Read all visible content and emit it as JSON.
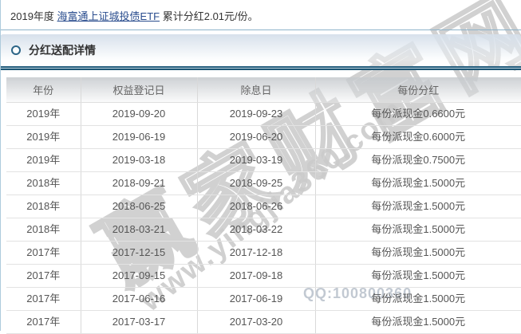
{
  "summary": {
    "prefix": "2019年度 ",
    "fund_link": "海富通上证城投债ETF",
    "suffix": " 累计分红2.01元/份。"
  },
  "section": {
    "title": "分红送配详情"
  },
  "table": {
    "headers": [
      "年份",
      "权益登记日",
      "除息日",
      "每份分红"
    ],
    "rows": [
      [
        "2019年",
        "2019-09-20",
        "2019-09-23",
        "每份派现金0.6600元"
      ],
      [
        "2019年",
        "2019-06-19",
        "2019-06-20",
        "每份派现金0.6000元"
      ],
      [
        "2019年",
        "2019-03-18",
        "2019-03-19",
        "每份派现金0.7500元"
      ],
      [
        "2018年",
        "2018-09-21",
        "2018-09-25",
        "每份派现金1.5000元"
      ],
      [
        "2018年",
        "2018-06-25",
        "2018-06-26",
        "每份派现金1.5000元"
      ],
      [
        "2018年",
        "2018-03-21",
        "2018-03-22",
        "每份派现金1.5000元"
      ],
      [
        "2017年",
        "2017-12-15",
        "2017-12-18",
        "每份派现金1.5000元"
      ],
      [
        "2017年",
        "2017-09-15",
        "2017-09-18",
        "每份派现金1.5000元"
      ],
      [
        "2017年",
        "2017-06-16",
        "2017-06-19",
        "每份派现金1.5000元"
      ],
      [
        "2017年",
        "2017-03-17",
        "2017-03-20",
        "每份派现金1.5000元"
      ]
    ]
  },
  "watermarks": {
    "brand": "赢家财富网",
    "url": "www.yingjia360.com",
    "qq": "QQ:100800360"
  },
  "colors": {
    "accent_teal": "#1d5674",
    "link_blue": "#2a4d8e",
    "band_blue": "#d5dfea",
    "border_blue": "#8db3ca",
    "watermark_gray": "#b3b3b3"
  }
}
